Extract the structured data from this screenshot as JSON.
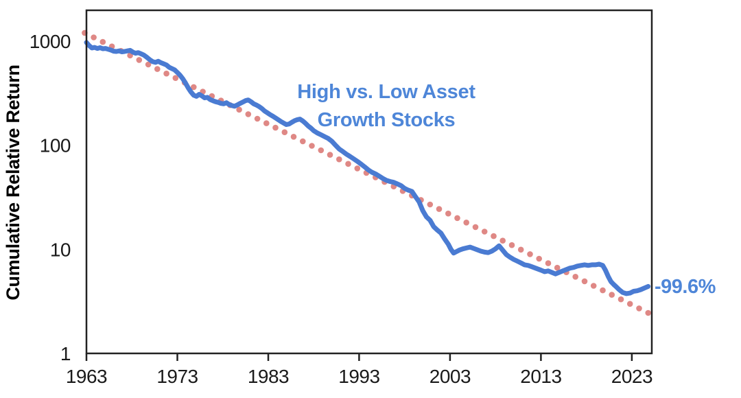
{
  "page": {
    "background": "#ffffff"
  },
  "annotations": {
    "title_line1": "High vs. Low Asset",
    "title_line2": "Growth Stocks",
    "end_label": "-99.6%"
  },
  "colors": {
    "series_line": "#4a7bd2",
    "trend_dots": "#dc7b78",
    "annotation_text": "#4e86d8",
    "end_label_text": "#4e86d8",
    "axis_line": "#222222",
    "tick_text": "#1a1a1a",
    "axis_title_text": "#000000"
  },
  "chart_data": {
    "type": "line",
    "title": "High vs. Low Asset Growth Stocks",
    "xlabel": "",
    "ylabel": "Cumulative Relative Return",
    "x_scale": "linear",
    "y_scale": "log",
    "xlim": [
      1963,
      2025.2
    ],
    "ylim": [
      1,
      1978
    ],
    "x_ticks": [
      1963,
      1973,
      1983,
      1993,
      2003,
      2013,
      2023
    ],
    "y_ticks": [
      1000,
      100,
      10,
      1
    ],
    "grid": false,
    "legend": "none",
    "series": [
      {
        "name": "High vs. Low Asset Growth Stocks (cumulative relative return)",
        "style": "solid",
        "color": "#4a7bd2",
        "points": [
          [
            1963.0,
            970
          ],
          [
            1963.3,
            905
          ],
          [
            1963.6,
            860
          ],
          [
            1963.9,
            870
          ],
          [
            1964.2,
            850
          ],
          [
            1964.5,
            865
          ],
          [
            1964.8,
            845
          ],
          [
            1965.1,
            850
          ],
          [
            1965.4,
            835
          ],
          [
            1965.7,
            820
          ],
          [
            1966.0,
            800
          ],
          [
            1966.3,
            795
          ],
          [
            1966.6,
            805
          ],
          [
            1966.9,
            790
          ],
          [
            1967.2,
            795
          ],
          [
            1967.5,
            805
          ],
          [
            1967.8,
            815
          ],
          [
            1968.1,
            785
          ],
          [
            1968.4,
            765
          ],
          [
            1968.7,
            775
          ],
          [
            1969.0,
            755
          ],
          [
            1969.3,
            735
          ],
          [
            1969.6,
            705
          ],
          [
            1970.0,
            660
          ],
          [
            1970.3,
            635
          ],
          [
            1970.6,
            625
          ],
          [
            1970.9,
            640
          ],
          [
            1971.2,
            620
          ],
          [
            1971.5,
            605
          ],
          [
            1971.8,
            590
          ],
          [
            1972.1,
            560
          ],
          [
            1972.4,
            545
          ],
          [
            1972.7,
            530
          ],
          [
            1973.0,
            500
          ],
          [
            1973.3,
            470
          ],
          [
            1973.6,
            435
          ],
          [
            1973.9,
            395
          ],
          [
            1974.2,
            355
          ],
          [
            1974.5,
            325
          ],
          [
            1974.8,
            302
          ],
          [
            1975.1,
            295
          ],
          [
            1975.4,
            308
          ],
          [
            1975.7,
            298
          ],
          [
            1976.0,
            285
          ],
          [
            1976.3,
            288
          ],
          [
            1976.6,
            275
          ],
          [
            1976.9,
            268
          ],
          [
            1977.2,
            262
          ],
          [
            1977.5,
            258
          ],
          [
            1977.8,
            252
          ],
          [
            1978.1,
            250
          ],
          [
            1978.4,
            256
          ],
          [
            1978.7,
            246
          ],
          [
            1979.0,
            240
          ],
          [
            1979.3,
            237
          ],
          [
            1979.6,
            244
          ],
          [
            1979.9,
            252
          ],
          [
            1980.2,
            260
          ],
          [
            1980.5,
            268
          ],
          [
            1980.8,
            272
          ],
          [
            1981.1,
            262
          ],
          [
            1981.4,
            250
          ],
          [
            1981.7,
            243
          ],
          [
            1982.0,
            235
          ],
          [
            1982.3,
            225
          ],
          [
            1982.6,
            213
          ],
          [
            1982.9,
            205
          ],
          [
            1983.2,
            197
          ],
          [
            1983.5,
            190
          ],
          [
            1983.8,
            183
          ],
          [
            1984.1,
            176
          ],
          [
            1984.4,
            169
          ],
          [
            1984.7,
            163
          ],
          [
            1985.0,
            158
          ],
          [
            1985.3,
            160
          ],
          [
            1985.6,
            166
          ],
          [
            1985.9,
            172
          ],
          [
            1986.2,
            176
          ],
          [
            1986.5,
            178
          ],
          [
            1986.8,
            171
          ],
          [
            1987.1,
            162
          ],
          [
            1987.4,
            153
          ],
          [
            1987.7,
            146
          ],
          [
            1988.0,
            138
          ],
          [
            1988.4,
            131
          ],
          [
            1988.8,
            126
          ],
          [
            1989.2,
            121
          ],
          [
            1989.6,
            116
          ],
          [
            1990.0,
            109
          ],
          [
            1990.4,
            100
          ],
          [
            1990.8,
            92
          ],
          [
            1991.2,
            87
          ],
          [
            1991.6,
            82
          ],
          [
            1992.0,
            78
          ],
          [
            1992.4,
            74
          ],
          [
            1992.8,
            70
          ],
          [
            1993.2,
            66
          ],
          [
            1993.6,
            62
          ],
          [
            1994.0,
            58
          ],
          [
            1994.4,
            55
          ],
          [
            1994.8,
            53
          ],
          [
            1995.2,
            50.5
          ],
          [
            1995.6,
            48
          ],
          [
            1996.0,
            46
          ],
          [
            1996.4,
            44.8
          ],
          [
            1996.8,
            44
          ],
          [
            1997.2,
            42.5
          ],
          [
            1997.6,
            41
          ],
          [
            1998.0,
            38.5
          ],
          [
            1998.4,
            37
          ],
          [
            1998.8,
            36
          ],
          [
            1999.2,
            32
          ],
          [
            1999.6,
            28.5
          ],
          [
            2000.0,
            23.5
          ],
          [
            2000.4,
            20.5
          ],
          [
            2000.8,
            19
          ],
          [
            2001.2,
            16.5
          ],
          [
            2001.6,
            15.3
          ],
          [
            2002.0,
            14.3
          ],
          [
            2002.4,
            12.6
          ],
          [
            2002.8,
            11.2
          ],
          [
            2003.1,
            10.0
          ],
          [
            2003.4,
            9.2
          ],
          [
            2003.7,
            9.5
          ],
          [
            2004.0,
            9.8
          ],
          [
            2004.4,
            10.1
          ],
          [
            2004.8,
            10.3
          ],
          [
            2005.2,
            10.5
          ],
          [
            2005.6,
            10.2
          ],
          [
            2006.0,
            9.9
          ],
          [
            2006.4,
            9.6
          ],
          [
            2006.8,
            9.4
          ],
          [
            2007.2,
            9.3
          ],
          [
            2007.6,
            9.6
          ],
          [
            2008.0,
            10.1
          ],
          [
            2008.4,
            10.8
          ],
          [
            2008.8,
            9.8
          ],
          [
            2009.2,
            8.9
          ],
          [
            2009.6,
            8.4
          ],
          [
            2010.0,
            8.0
          ],
          [
            2010.4,
            7.7
          ],
          [
            2010.8,
            7.4
          ],
          [
            2011.2,
            7.1
          ],
          [
            2011.6,
            7.0
          ],
          [
            2012.0,
            6.8
          ],
          [
            2012.4,
            6.6
          ],
          [
            2013.0,
            6.3
          ],
          [
            2013.4,
            6.1
          ],
          [
            2013.8,
            6.2
          ],
          [
            2014.2,
            6.0
          ],
          [
            2014.6,
            5.8
          ],
          [
            2015.0,
            6.0
          ],
          [
            2015.4,
            6.2
          ],
          [
            2015.8,
            6.4
          ],
          [
            2016.2,
            6.6
          ],
          [
            2016.6,
            6.7
          ],
          [
            2017.0,
            6.9
          ],
          [
            2017.4,
            7.0
          ],
          [
            2017.8,
            7.1
          ],
          [
            2018.2,
            7.0
          ],
          [
            2018.6,
            7.1
          ],
          [
            2019.0,
            7.1
          ],
          [
            2019.4,
            7.2
          ],
          [
            2019.8,
            7.0
          ],
          [
            2020.1,
            6.3
          ],
          [
            2020.4,
            5.5
          ],
          [
            2020.7,
            4.9
          ],
          [
            2021.0,
            4.6
          ],
          [
            2021.3,
            4.35
          ],
          [
            2021.6,
            4.1
          ],
          [
            2022.0,
            3.85
          ],
          [
            2022.4,
            3.75
          ],
          [
            2022.8,
            3.8
          ],
          [
            2023.2,
            3.95
          ],
          [
            2023.6,
            4.0
          ],
          [
            2024.0,
            4.1
          ],
          [
            2024.4,
            4.25
          ],
          [
            2024.8,
            4.4
          ]
        ]
      }
    ],
    "trend": {
      "name": "Exponential trend line",
      "style": "dotted",
      "color": "#dc7b78",
      "start": [
        1962.8,
        1200
      ],
      "end": [
        2024.8,
        2.45
      ],
      "dot_interval_years": 1
    },
    "end_annotation": {
      "text": "-99.6%",
      "year": 2024.8,
      "value": 4.4
    }
  }
}
